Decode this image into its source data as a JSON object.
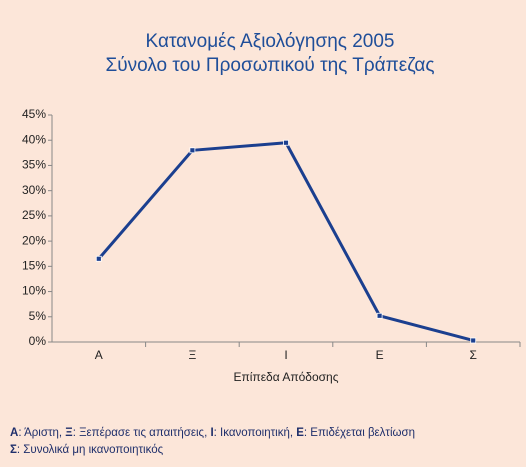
{
  "chart_data": {
    "type": "line",
    "title": [
      "Κατανομές Αξιολόγησης 2005",
      "Σύνολο του Προσωπικού της Τράπεζας"
    ],
    "x_label": "Επίπεδα Απόδοσης",
    "categories": [
      "Α",
      "Ξ",
      "Ι",
      "Ε",
      "Σ"
    ],
    "series": [
      {
        "color": "#1b3f8f",
        "values": [
          16.5,
          38,
          39.5,
          5.2,
          0.3
        ]
      }
    ],
    "ylim": [
      0,
      45
    ],
    "yticks": [
      {
        "value": 0,
        "label": "0%"
      },
      {
        "value": 5,
        "label": "5%"
      },
      {
        "value": 10,
        "label": "10%"
      },
      {
        "value": 15,
        "label": "15%"
      },
      {
        "value": 20,
        "label": "20%"
      },
      {
        "value": 25,
        "label": "25%"
      },
      {
        "value": 30,
        "label": "30%"
      },
      {
        "value": 35,
        "label": "35%"
      },
      {
        "value": 40,
        "label": "40%"
      },
      {
        "value": 45,
        "label": "45%"
      }
    ],
    "grid": false,
    "footnote": [
      [
        {
          "key": "Α",
          "desc": ": Άριστη, "
        },
        {
          "key": "Ξ",
          "desc": ": Ξεπέρασε τις απαιτήσεις, "
        },
        {
          "key": "Ι",
          "desc": ": Ικανοποιητική, "
        },
        {
          "key": "Ε",
          "desc": ": Επιδέχεται βελτίωση"
        }
      ],
      [
        {
          "key": "Σ",
          "desc": ": Συνολικά μη ικανοποιητικός"
        }
      ]
    ]
  }
}
